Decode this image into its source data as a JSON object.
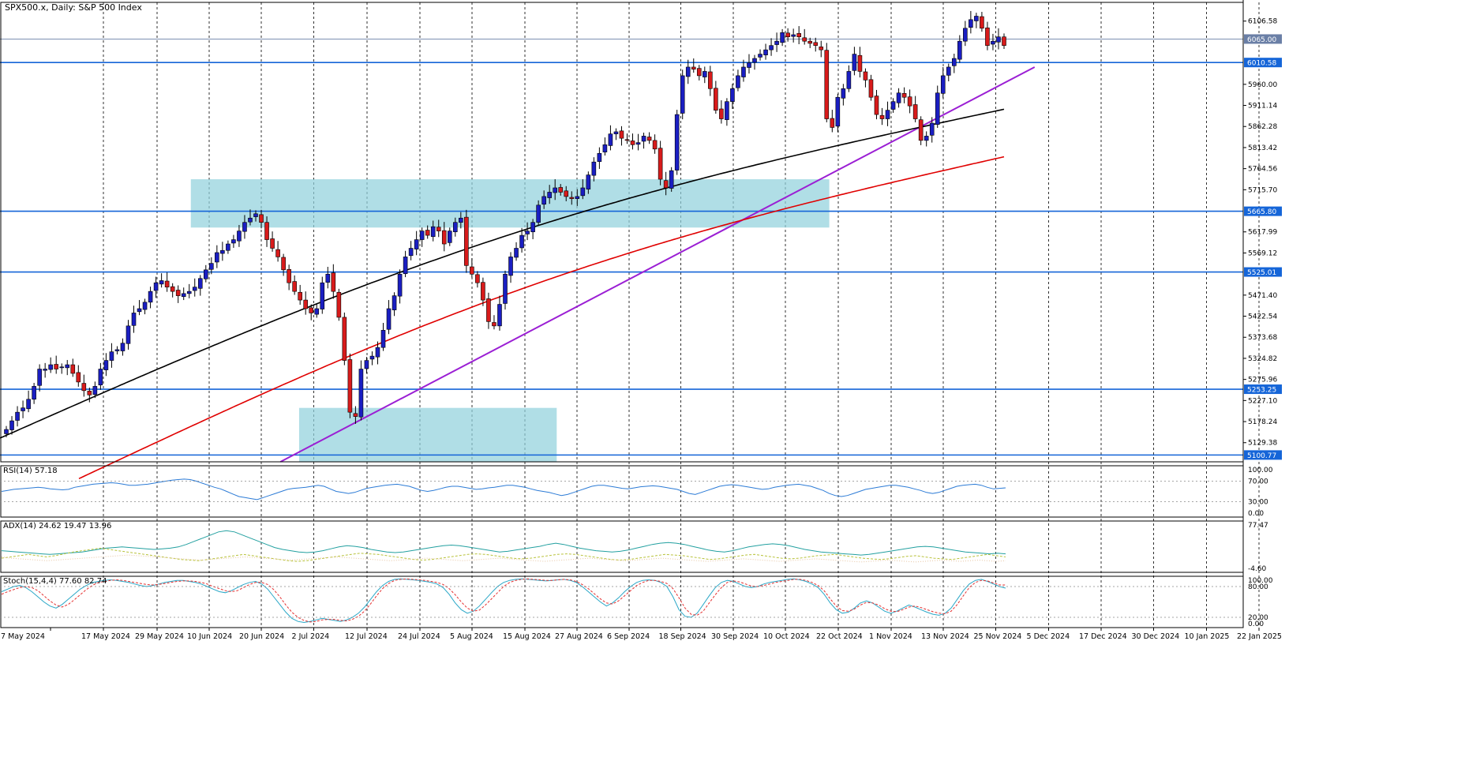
{
  "chart_data": {
    "type": "candlestick",
    "symbol_title": "SPX500.x, Daily:  S&P 500 Index",
    "x_labels": [
      "7 May 2024",
      "17 May 2024",
      "29 May 2024",
      "10 Jun 2024",
      "20 Jun 2024",
      "2 Jul 2024",
      "12 Jul 2024",
      "24 Jul 2024",
      "5 Aug 2024",
      "15 Aug 2024",
      "27 Aug 2024",
      "6 Sep 2024",
      "18 Sep 2024",
      "30 Sep 2024",
      "10 Oct 2024",
      "22 Oct 2024",
      "1 Nov 2024",
      "13 Nov 2024",
      "25 Nov 2024",
      "5 Dec 2024",
      "17 Dec 2024",
      "30 Dec 2024",
      "10 Jan 2025",
      "22 Jan 2025"
    ],
    "y_ticks": [
      "6106.58",
      "5960.00",
      "5911.14",
      "5862.28",
      "5813.42",
      "5764.56",
      "5715.70",
      "5617.99",
      "5569.12",
      "5471.40",
      "5422.54",
      "5373.68",
      "5324.82",
      "5275.96",
      "5227.10",
      "5178.24",
      "5129.38"
    ],
    "price_labels": [
      "6065.00",
      "6010.58",
      "5665.80",
      "5525.01",
      "5253.25",
      "5100.77"
    ],
    "horizontal_levels": [
      6010.58,
      5665.8,
      5525.01,
      5253.25,
      5100.77
    ],
    "current_price": 6065.0,
    "ylim": [
      5085,
      6150
    ],
    "support_zones": [
      {
        "from_date": "2024-06-25",
        "to_date": "2024-12-13",
        "low": 5628,
        "high": 5740
      },
      {
        "from_date": "2024-07-24",
        "to_date": "2024-10-01",
        "low": 5085,
        "high": 5210
      }
    ],
    "trendline": {
      "from": {
        "date": "2024-07-19",
        "price": 5085
      },
      "to": {
        "date": "2025-02-06",
        "price": 6000
      }
    },
    "moving_averages": [
      {
        "color": "#000000",
        "start_value": 5140,
        "end_value": 5987
      },
      {
        "color": "#e00000",
        "start_value": 5046,
        "end_value": 5875
      }
    ],
    "candles_approx": [
      5160,
      5180,
      5200,
      5210,
      5230,
      5260,
      5300,
      5300,
      5310,
      5300,
      5305,
      5310,
      5290,
      5270,
      5250,
      5240,
      5260,
      5300,
      5320,
      5340,
      5345,
      5360,
      5400,
      5430,
      5440,
      5455,
      5480,
      5500,
      5505,
      5490,
      5480,
      5470,
      5475,
      5480,
      5490,
      5510,
      5530,
      5545,
      5570,
      5575,
      5590,
      5600,
      5620,
      5640,
      5650,
      5660,
      5640,
      5600,
      5580,
      5560,
      5530,
      5500,
      5480,
      5460,
      5440,
      5430,
      5440,
      5500,
      5520,
      5480,
      5420,
      5320,
      5200,
      5190,
      5300,
      5320,
      5330,
      5350,
      5390,
      5440,
      5470,
      5520,
      5560,
      5580,
      5600,
      5620,
      5610,
      5630,
      5620,
      5590,
      5620,
      5640,
      5650,
      5540,
      5520,
      5500,
      5460,
      5410,
      5400,
      5450,
      5520,
      5560,
      5580,
      5610,
      5620,
      5640,
      5680,
      5700,
      5710,
      5720,
      5710,
      5700,
      5695,
      5700,
      5720,
      5750,
      5780,
      5800,
      5820,
      5845,
      5850,
      5835,
      5830,
      5820,
      5825,
      5840,
      5830,
      5810,
      5740,
      5720,
      5760,
      5890,
      5980,
      6000,
      5995,
      5980,
      5990,
      5950,
      5900,
      5880,
      5920,
      5950,
      5980,
      6000,
      6010,
      6020,
      6030,
      6040,
      6050,
      6060,
      6080,
      6070,
      6075,
      6070,
      6060,
      6055,
      6050,
      6040,
      5880,
      5860,
      5930,
      5950,
      5990,
      6030,
      5990,
      5970,
      5930,
      5890,
      5880,
      5900,
      5920,
      5940,
      5930,
      5910,
      5880,
      5830,
      5840,
      5870,
      5940,
      5980,
      6000,
      6020,
      6060,
      6090,
      6110,
      6118,
      6090,
      6050,
      6060,
      6070,
      6050
    ],
    "indicators": {
      "rsi": {
        "label": "RSI(14) 57.18",
        "ticks": [
          "100.00",
          "70.00",
          "30.00",
          "0.00"
        ],
        "series": [
          50,
          52,
          54,
          55,
          56,
          57,
          58,
          57,
          55,
          54,
          53,
          54,
          58,
          60,
          62,
          64,
          65,
          66,
          67,
          66,
          64,
          62,
          62,
          63,
          64,
          66,
          68,
          70,
          72,
          73,
          74,
          73,
          70,
          66,
          62,
          58,
          55,
          50,
          45,
          40,
          38,
          36,
          34,
          38,
          42,
          46,
          50,
          54,
          56,
          57,
          58,
          60,
          62,
          60,
          55,
          50,
          48,
          46,
          48,
          52,
          56,
          58,
          60,
          62,
          63,
          64,
          62,
          60,
          56,
          52,
          50,
          52,
          55,
          58,
          60,
          60,
          58,
          56,
          54,
          55,
          57,
          58,
          60,
          62,
          62,
          60,
          58,
          55,
          52,
          50,
          48,
          45,
          42,
          44,
          48,
          52,
          56,
          60,
          62,
          62,
          60,
          58,
          56,
          55,
          57,
          59,
          60,
          61,
          60,
          58,
          56,
          54,
          50,
          46,
          44,
          48,
          52,
          56,
          60,
          62,
          63,
          62,
          60,
          58,
          56,
          54,
          55,
          58,
          60,
          62,
          63,
          64,
          62,
          60,
          56,
          52,
          46,
          42,
          40,
          42,
          46,
          50,
          54,
          56,
          58,
          60,
          62,
          62,
          60,
          58,
          55,
          52,
          48,
          46,
          48,
          52,
          56,
          60,
          62,
          63,
          64,
          62,
          58,
          55,
          56,
          57
        ]
      },
      "adx": {
        "label": "ADX(14) 24.62 19.47 13.96",
        "ticks": [
          "77.47",
          "-4.60"
        ],
        "adx_series": [
          30,
          29,
          28,
          27,
          26,
          25,
          24,
          25,
          26,
          27,
          28,
          30,
          32,
          34,
          35,
          36,
          35,
          34,
          33,
          32,
          33,
          34,
          36,
          40,
          45,
          50,
          55,
          60,
          62,
          60,
          55,
          50,
          45,
          40,
          35,
          32,
          30,
          28,
          27,
          28,
          30,
          33,
          36,
          38,
          37,
          35,
          32,
          30,
          28,
          27,
          28,
          30,
          32,
          34,
          36,
          38,
          39,
          38,
          36,
          34,
          32,
          30,
          28,
          29,
          31,
          33,
          35,
          37,
          40,
          42,
          40,
          37,
          34,
          32,
          30,
          29,
          28,
          29,
          31,
          34,
          37,
          40,
          42,
          43,
          42,
          40,
          37,
          34,
          31,
          29,
          28,
          30,
          33,
          36,
          38,
          40,
          41,
          40,
          38,
          35,
          32,
          30,
          28,
          27,
          26,
          25,
          24,
          23,
          24,
          26,
          28,
          30,
          32,
          34,
          36,
          37,
          36,
          34,
          32,
          30,
          28,
          27,
          26,
          25,
          26,
          25
        ],
        "plus_di_series": [
          18,
          20,
          22,
          24,
          22,
          20,
          22,
          25,
          28,
          30,
          32,
          34,
          32,
          30,
          28,
          26,
          24,
          22,
          20,
          18,
          16,
          15,
          14,
          16,
          18,
          20,
          22,
          24,
          22,
          20,
          18,
          16,
          14,
          13,
          14,
          16,
          18,
          20,
          22,
          24,
          26,
          25,
          24,
          22,
          20,
          18,
          16,
          15,
          16,
          18,
          20,
          22,
          24,
          25,
          24,
          22,
          20,
          18,
          17,
          18,
          20,
          22,
          24,
          25,
          24,
          22,
          20,
          18,
          16,
          15,
          16,
          18,
          20,
          22,
          24,
          23,
          22,
          20,
          18,
          16,
          17,
          19,
          21,
          23,
          24,
          22,
          20,
          18,
          17,
          18,
          20,
          22,
          23,
          24,
          22,
          20,
          18,
          17,
          16,
          17,
          19,
          21,
          22,
          20,
          18,
          17,
          16,
          18,
          20,
          22,
          24,
          22,
          20
        ],
        "minus_di_series": [
          20,
          18,
          17,
          16,
          15,
          14,
          15,
          16,
          17,
          18,
          19,
          20,
          21,
          22,
          23,
          22,
          21,
          20,
          19,
          18,
          17,
          16,
          15,
          16,
          17,
          18,
          19,
          20,
          19,
          18,
          17,
          16,
          15,
          16,
          17,
          18,
          19,
          20,
          19,
          18,
          17,
          16,
          15,
          14,
          15,
          16,
          17,
          18,
          17,
          16,
          15,
          14,
          15,
          16,
          17,
          18,
          17,
          16,
          15,
          14,
          13,
          14,
          15,
          16,
          17,
          18,
          17,
          16,
          15,
          14,
          15,
          16,
          17,
          18,
          17,
          16,
          15,
          14,
          13,
          14,
          15,
          16,
          17,
          16,
          15,
          14,
          13,
          14,
          15,
          16,
          17,
          16,
          15,
          14,
          13,
          12,
          13,
          14,
          15,
          14,
          13,
          12,
          13,
          14,
          15,
          14,
          13,
          14,
          15,
          14,
          13,
          14
        ]
      },
      "stoch": {
        "label": "Stoch(15,4,4) 77.60 82.74",
        "ticks": [
          "100.00",
          "80.00",
          "20.00",
          "0.00"
        ],
        "k_series": [
          70,
          75,
          80,
          82,
          78,
          70,
          60,
          50,
          42,
          38,
          45,
          55,
          65,
          75,
          82,
          88,
          90,
          92,
          93,
          92,
          90,
          88,
          85,
          82,
          80,
          82,
          85,
          88,
          90,
          92,
          92,
          90,
          88,
          85,
          80,
          75,
          70,
          68,
          72,
          78,
          84,
          88,
          90,
          85,
          75,
          60,
          45,
          30,
          18,
          12,
          10,
          12,
          15,
          18,
          16,
          14,
          12,
          15,
          20,
          28,
          40,
          55,
          70,
          82,
          90,
          94,
          95,
          94,
          93,
          92,
          90,
          88,
          85,
          78,
          65,
          48,
          35,
          28,
          32,
          42,
          55,
          68,
          80,
          88,
          92,
          94,
          95,
          94,
          93,
          92,
          91,
          92,
          93,
          94,
          92,
          88,
          80,
          70,
          60,
          50,
          42,
          48,
          58,
          70,
          80,
          88,
          92,
          93,
          92,
          88,
          80,
          60,
          35,
          22,
          20,
          28,
          45,
          62,
          78,
          88,
          92,
          90,
          85,
          80,
          78,
          80,
          85,
          88,
          90,
          92,
          94,
          95,
          93,
          90,
          85,
          78,
          65,
          48,
          35,
          28,
          30,
          38,
          48,
          52,
          48,
          40,
          32,
          28,
          32,
          38,
          44,
          40,
          35,
          30,
          26,
          24,
          28,
          38,
          55,
          72,
          85,
          92,
          94,
          90,
          85,
          80,
          77
        ],
        "d_series": [
          65,
          70,
          74,
          78,
          80,
          78,
          72,
          62,
          52,
          44,
          40,
          45,
          54,
          64,
          74,
          82,
          88,
          90,
          92,
          93,
          92,
          90,
          88,
          86,
          84,
          83,
          84,
          86,
          88,
          90,
          91,
          91,
          90,
          88,
          85,
          80,
          76,
          72,
          70,
          72,
          78,
          84,
          88,
          88,
          84,
          74,
          60,
          44,
          30,
          20,
          14,
          11,
          12,
          15,
          16,
          16,
          14,
          13,
          16,
          22,
          32,
          46,
          62,
          76,
          86,
          92,
          94,
          95,
          94,
          93,
          92,
          90,
          88,
          84,
          76,
          64,
          50,
          38,
          32,
          34,
          44,
          56,
          68,
          80,
          88,
          92,
          94,
          95,
          94,
          93,
          92,
          92,
          93,
          94,
          93,
          90,
          84,
          76,
          66,
          56,
          48,
          46,
          52,
          62,
          72,
          82,
          88,
          92,
          92,
          90,
          86,
          76,
          58,
          38,
          26,
          24,
          32,
          48,
          64,
          78,
          88,
          91,
          89,
          85,
          81,
          80,
          82,
          85,
          88,
          90,
          92,
          94,
          94,
          92,
          88,
          82,
          72,
          56,
          42,
          33,
          32,
          36,
          44,
          49,
          48,
          44,
          37,
          32,
          31,
          35,
          40,
          42,
          39,
          35,
          31,
          28,
          27,
          32,
          45,
          62,
          78,
          88,
          92,
          91,
          87,
          83,
          83
        ]
      }
    }
  }
}
